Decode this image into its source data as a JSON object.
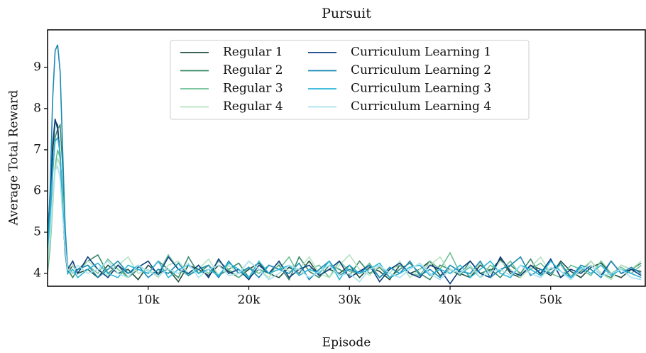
{
  "chart_data": {
    "type": "line",
    "title": "Pursuit",
    "xlabel": "Episode",
    "ylabel": "Average Total Reward",
    "x": [
      0,
      250,
      500,
      750,
      1000,
      1250,
      1500,
      1750,
      2000,
      2500,
      3000,
      4000,
      5000,
      6000,
      7000,
      8000,
      9000,
      10000,
      11000,
      12000,
      13000,
      14000,
      15000,
      16000,
      17000,
      18000,
      19000,
      20000,
      21000,
      22000,
      23000,
      24000,
      25000,
      26000,
      27000,
      28000,
      29000,
      30000,
      31000,
      32000,
      33000,
      34000,
      35000,
      36000,
      37000,
      38000,
      39000,
      40000,
      41000,
      42000,
      43000,
      44000,
      45000,
      46000,
      47000,
      48000,
      49000,
      50000,
      51000,
      52000,
      53000,
      54000,
      55000,
      56000,
      57000,
      58000,
      59000
    ],
    "xlim": [
      0,
      59400
    ],
    "ylim": [
      3.69,
      9.91
    ],
    "xticks": [
      {
        "value": 10000,
        "label": "10k"
      },
      {
        "value": 20000,
        "label": "20k"
      },
      {
        "value": 30000,
        "label": "30k"
      },
      {
        "value": 40000,
        "label": "40k"
      },
      {
        "value": 50000,
        "label": "50k"
      }
    ],
    "yticks": [
      4,
      5,
      6,
      7,
      8,
      9
    ],
    "legend": "upper center",
    "series": [
      {
        "name": "Regular 1",
        "color": "#1f4e3d",
        "values": [
          4.9,
          5.6,
          6.9,
          7.7,
          7.6,
          6.8,
          5.5,
          4.5,
          4.0,
          4.2,
          4.0,
          4.1,
          3.9,
          4.2,
          4.0,
          4.1,
          3.85,
          4.2,
          4.0,
          4.1,
          3.8,
          4.2,
          4.1,
          3.95,
          4.2,
          4.05,
          3.9,
          4.1,
          4.25,
          4.0,
          3.9,
          4.15,
          4.0,
          4.3,
          3.95,
          4.1,
          4.0,
          4.2,
          3.9,
          4.15,
          4.05,
          3.85,
          4.2,
          4.0,
          4.1,
          4.3,
          3.95,
          4.1,
          4.0,
          3.9,
          4.2,
          4.05,
          4.35,
          4.0,
          3.9,
          4.2,
          4.1,
          3.95,
          4.3,
          4.05,
          3.9,
          4.15,
          4.25,
          4.0,
          3.9,
          4.1,
          4.05
        ]
      },
      {
        "name": "Regular 2",
        "color": "#3a8a6a",
        "values": [
          4.4,
          5.2,
          6.4,
          7.3,
          7.5,
          7.6,
          6.6,
          5.0,
          4.1,
          3.9,
          4.1,
          4.3,
          4.45,
          4.0,
          4.2,
          3.9,
          4.1,
          4.0,
          4.3,
          4.1,
          3.9,
          4.4,
          4.0,
          4.2,
          3.95,
          4.1,
          4.25,
          3.9,
          4.1,
          4.0,
          4.2,
          3.85,
          4.4,
          4.05,
          3.9,
          4.2,
          4.1,
          3.95,
          4.3,
          4.0,
          4.15,
          3.9,
          4.1,
          4.25,
          4.0,
          3.85,
          4.2,
          4.1,
          3.95,
          4.3,
          4.0,
          4.1,
          3.9,
          4.2,
          4.0,
          4.35,
          3.95,
          4.1,
          4.2,
          3.9,
          4.05,
          4.3,
          4.0,
          3.9,
          4.2,
          4.1,
          4.25
        ]
      },
      {
        "name": "Regular 3",
        "color": "#6dbf96",
        "values": [
          4.0,
          4.6,
          5.6,
          6.6,
          7.0,
          6.8,
          5.9,
          4.9,
          4.2,
          4.0,
          4.1,
          4.2,
          4.0,
          4.35,
          4.1,
          3.9,
          4.2,
          4.05,
          4.0,
          4.45,
          4.1,
          3.95,
          4.2,
          4.0,
          4.3,
          4.1,
          3.9,
          4.15,
          4.0,
          4.2,
          4.1,
          4.4,
          3.95,
          4.1,
          4.2,
          3.9,
          4.3,
          4.05,
          4.0,
          4.25,
          3.9,
          4.1,
          4.2,
          4.0,
          3.95,
          4.3,
          4.1,
          4.5,
          4.0,
          4.15,
          3.9,
          4.2,
          4.05,
          4.3,
          3.95,
          4.1,
          4.25,
          4.0,
          3.9,
          4.2,
          4.1,
          3.95,
          4.3,
          4.0,
          4.15,
          4.0,
          4.2
        ]
      },
      {
        "name": "Regular 4",
        "color": "#b5e3c0",
        "values": [
          4.2,
          4.8,
          5.7,
          6.5,
          6.8,
          6.6,
          5.8,
          4.8,
          4.1,
          4.2,
          4.0,
          4.3,
          4.1,
          3.95,
          4.2,
          4.4,
          4.0,
          4.1,
          3.9,
          4.2,
          4.3,
          4.0,
          4.1,
          4.35,
          3.95,
          4.2,
          4.0,
          4.3,
          4.1,
          3.9,
          4.25,
          4.05,
          4.1,
          4.4,
          4.0,
          3.9,
          4.2,
          4.45,
          4.1,
          3.95,
          4.2,
          4.0,
          4.3,
          3.9,
          4.1,
          4.2,
          4.4,
          4.0,
          4.1,
          3.95,
          4.25,
          4.0,
          4.3,
          4.1,
          3.9,
          4.15,
          4.4,
          4.0,
          4.2,
          3.95,
          4.1,
          4.3,
          4.0,
          3.85,
          4.2,
          4.1,
          4.3
        ]
      },
      {
        "name": "Curriculum Learning 1",
        "color": "#0c3d80",
        "values": [
          5.0,
          5.8,
          7.1,
          7.75,
          7.5,
          6.9,
          5.6,
          4.5,
          4.1,
          4.3,
          4.0,
          4.4,
          4.1,
          3.9,
          4.2,
          4.0,
          4.15,
          4.3,
          3.95,
          4.4,
          4.1,
          4.0,
          4.2,
          3.9,
          4.35,
          4.0,
          4.1,
          3.85,
          4.2,
          4.0,
          4.3,
          3.9,
          4.1,
          4.2,
          3.95,
          4.1,
          4.3,
          3.9,
          4.05,
          4.2,
          3.8,
          4.1,
          4.25,
          4.0,
          3.9,
          4.2,
          4.1,
          3.75,
          4.1,
          4.3,
          4.0,
          3.9,
          4.4,
          4.05,
          3.95,
          4.2,
          4.0,
          4.35,
          3.9,
          4.1,
          4.0,
          4.2,
          3.95,
          4.3,
          4.0,
          4.1,
          3.95
        ]
      },
      {
        "name": "Curriculum Learning 2",
        "color": "#1a8ab5",
        "values": [
          4.7,
          6.0,
          8.2,
          9.4,
          9.55,
          8.9,
          7.0,
          5.1,
          4.1,
          4.0,
          4.1,
          4.2,
          3.9,
          4.1,
          4.3,
          4.0,
          4.2,
          3.9,
          4.1,
          4.0,
          4.25,
          3.95,
          4.1,
          4.2,
          3.9,
          4.3,
          4.0,
          4.15,
          3.9,
          4.2,
          4.1,
          4.0,
          4.25,
          3.85,
          4.1,
          4.3,
          3.95,
          4.1,
          4.0,
          4.2,
          3.9,
          4.15,
          4.0,
          4.3,
          3.95,
          4.1,
          3.9,
          4.2,
          4.05,
          4.0,
          4.3,
          3.9,
          4.1,
          4.2,
          4.4,
          3.95,
          4.1,
          4.0,
          4.25,
          3.9,
          4.2,
          4.1,
          3.9,
          4.3,
          4.0,
          4.15,
          4.0
        ]
      },
      {
        "name": "Curriculum Learning 3",
        "color": "#2bb5d8",
        "values": [
          4.5,
          5.4,
          6.5,
          7.2,
          7.3,
          6.9,
          5.7,
          4.6,
          4.0,
          4.1,
          3.9,
          4.1,
          4.25,
          4.0,
          3.9,
          4.2,
          4.1,
          4.0,
          4.3,
          3.9,
          4.1,
          4.2,
          4.0,
          4.1,
          3.95,
          4.25,
          4.1,
          3.9,
          4.3,
          4.0,
          4.1,
          4.2,
          3.95,
          4.1,
          4.0,
          4.3,
          3.85,
          4.2,
          4.0,
          4.1,
          4.25,
          3.9,
          4.0,
          4.15,
          4.2,
          3.95,
          4.1,
          4.0,
          4.2,
          3.9,
          4.1,
          4.3,
          4.0,
          3.9,
          4.2,
          4.1,
          3.95,
          4.3,
          4.05,
          3.9,
          4.15,
          4.0,
          4.2,
          3.95,
          4.1,
          4.0,
          3.9
        ]
      },
      {
        "name": "Curriculum Learning 4",
        "color": "#a8e0ee",
        "values": [
          4.3,
          5.0,
          5.9,
          6.5,
          6.6,
          6.3,
          5.4,
          4.6,
          4.1,
          4.0,
          4.2,
          4.0,
          4.1,
          4.3,
          4.0,
          3.9,
          4.2,
          4.05,
          3.95,
          4.1,
          4.0,
          4.25,
          3.9,
          4.1,
          4.2,
          3.95,
          4.0,
          4.3,
          4.1,
          3.85,
          4.0,
          4.2,
          4.1,
          3.9,
          4.05,
          4.2,
          3.95,
          4.0,
          3.8,
          4.1,
          4.2,
          4.0,
          3.9,
          4.1,
          4.25,
          4.0,
          3.85,
          4.1,
          4.0,
          4.2,
          3.9,
          4.05,
          4.1,
          3.95,
          4.2,
          4.0,
          3.9,
          4.15,
          4.05,
          3.85,
          4.1,
          4.2,
          3.95,
          4.0,
          4.1,
          3.9,
          3.85
        ]
      }
    ]
  }
}
